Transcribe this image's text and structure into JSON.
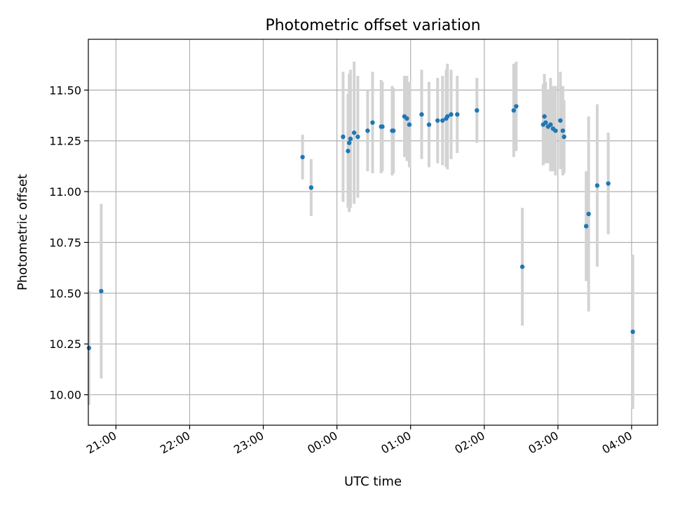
{
  "chart_data": {
    "type": "scatter",
    "title": "Photometric offset variation",
    "xlabel": "UTC time",
    "ylabel": "Photometric offset",
    "grid": true,
    "xlim": [
      "20:37:30",
      "04:21:10"
    ],
    "ylim": [
      9.85,
      11.75
    ],
    "x_ticks": [
      "21:00",
      "22:00",
      "23:00",
      "00:00",
      "01:00",
      "02:00",
      "03:00",
      "04:00"
    ],
    "y_ticks": [
      "10.00",
      "10.25",
      "10.50",
      "10.75",
      "11.00",
      "11.25",
      "11.50"
    ],
    "colors": {
      "point": "#1f77b4",
      "error_bar": "#d3d3d3",
      "grid": "#b0b0b0"
    },
    "series": [
      {
        "x": [
          "20:38",
          "20:48",
          "23:32",
          "23:39",
          "00:05",
          "00:09",
          "00:10",
          "00:11",
          "00:14",
          "00:17",
          "00:25",
          "00:29",
          "00:36",
          "00:37",
          "00:45",
          "00:46",
          "00:55",
          "00:57",
          "00:59",
          "01:09",
          "01:15",
          "01:22",
          "01:26",
          "01:29",
          "01:30",
          "01:33",
          "01:38",
          "01:54",
          "02:24",
          "02:26",
          "02:31",
          "02:48",
          "02:49",
          "02:50",
          "02:52",
          "02:54",
          "02:56",
          "02:58",
          "03:02",
          "03:04",
          "03:05",
          "03:23",
          "03:25",
          "03:32",
          "03:41",
          "04:01"
        ],
        "y": [
          10.23,
          10.51,
          11.17,
          11.02,
          11.27,
          11.2,
          11.24,
          11.26,
          11.29,
          11.27,
          11.3,
          11.34,
          11.32,
          11.32,
          11.3,
          11.3,
          11.37,
          11.36,
          11.33,
          11.38,
          11.33,
          11.35,
          11.35,
          11.36,
          11.37,
          11.38,
          11.38,
          11.4,
          11.4,
          11.42,
          10.63,
          11.33,
          11.37,
          11.34,
          11.32,
          11.33,
          11.31,
          11.3,
          11.35,
          11.3,
          11.27,
          10.83,
          10.89,
          11.03,
          11.04,
          10.31
        ],
        "yerr": [
          0.28,
          0.43,
          0.11,
          0.14,
          0.32,
          0.28,
          0.34,
          0.34,
          0.35,
          0.3,
          0.2,
          0.25,
          0.23,
          0.22,
          0.22,
          0.21,
          0.2,
          0.21,
          0.21,
          0.22,
          0.21,
          0.21,
          0.22,
          0.24,
          0.26,
          0.22,
          0.19,
          0.16,
          0.23,
          0.22,
          0.29,
          0.2,
          0.21,
          0.2,
          0.18,
          0.23,
          0.21,
          0.22,
          0.24,
          0.22,
          0.18,
          0.27,
          0.48,
          0.4,
          0.25,
          0.38
        ]
      }
    ]
  }
}
